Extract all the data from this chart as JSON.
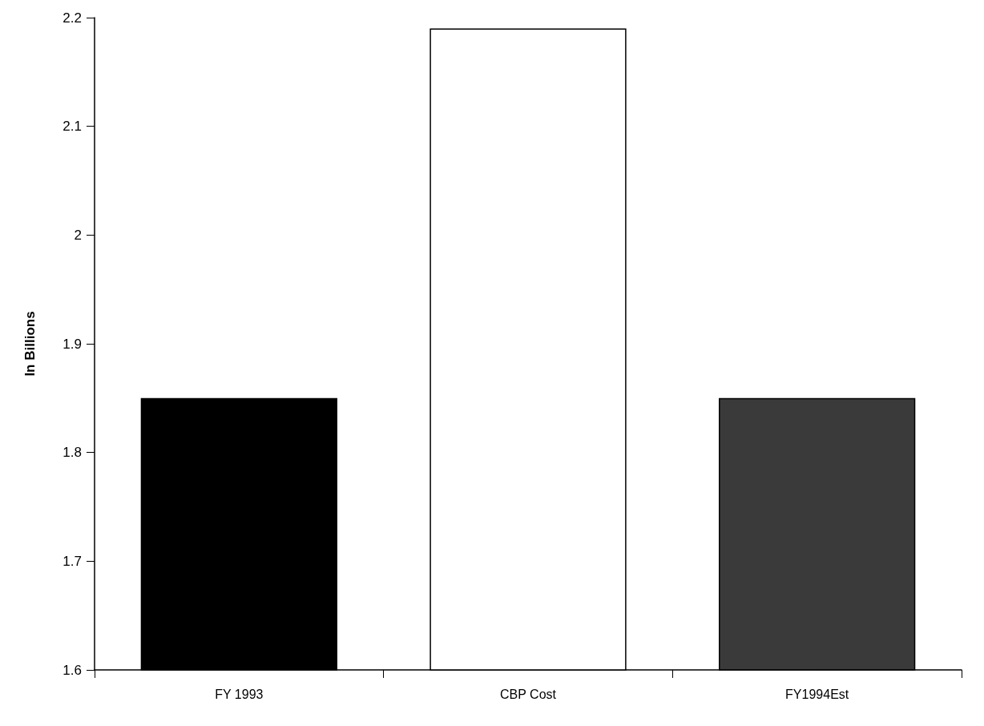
{
  "chart_data": {
    "type": "bar",
    "ylabel": "In Billions",
    "categories": [
      "FY 1993",
      "CBP Cost",
      "FY1994Est"
    ],
    "values": [
      1.85,
      2.19,
      1.85
    ],
    "colors": [
      "#000000",
      "#ffffff",
      "#3a3a3a"
    ],
    "ylim": [
      1.6,
      2.2
    ],
    "yticks": [
      1.6,
      1.7,
      1.8,
      1.9,
      2,
      2.1,
      2.2
    ]
  }
}
